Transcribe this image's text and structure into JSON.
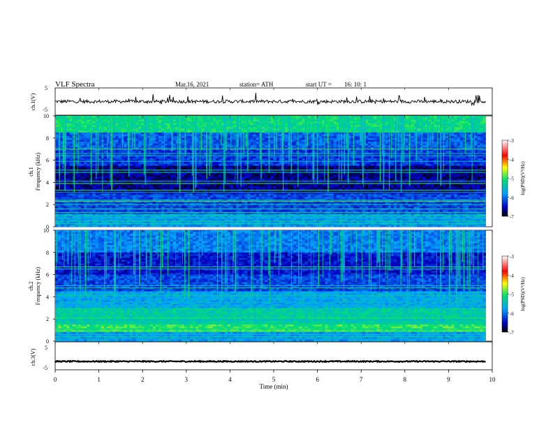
{
  "header": {
    "title": "VLF  Spectra",
    "date": "Mar.16, 2021",
    "station": "station= ATH",
    "start_label": "start  UT  =",
    "start_value": "16: 10: 1"
  },
  "panels": {
    "ch1_label": "ch.1(V)",
    "spec1_label": "ch.1",
    "spec2_label": "ch.2",
    "freq_label": "Frequency (kHz)",
    "ch3_label": "ch.3(V)",
    "x_label": "Time  (min)"
  },
  "colorbar": {
    "label": "log(PSD)(V²/Hz)",
    "ticks": [
      "-3",
      "-4",
      "-5",
      "-6",
      "-7"
    ]
  },
  "colors": {
    "min": "#000000",
    "low": "#0000d0",
    "mid_low": "#00a0ff",
    "mid": "#00e070",
    "mid_high": "#ffff00",
    "high": "#ff0000",
    "max": "#ffffff"
  },
  "chart_data": [
    {
      "type": "line",
      "name": "ch1 waveform",
      "ylabel": "ch.1(V)",
      "ylim": [
        -5,
        5
      ],
      "yticks": [
        5,
        -5
      ],
      "xlim": [
        0,
        10
      ],
      "baseline": 0,
      "x_end": 9.85
    },
    {
      "type": "heatmap",
      "ylabel": "Frequency (kHz)",
      "ylim": [
        0,
        10
      ],
      "yticks": [
        0,
        2,
        4,
        6,
        8,
        10
      ],
      "xlim": [
        0,
        10
      ],
      "x_end": 9.85,
      "color_range": [
        -7,
        -3
      ],
      "lines_khz": [
        0.3,
        0.5,
        0.8,
        1.0,
        1.3,
        1.6,
        2.0,
        2.3,
        2.4,
        3.1,
        3.3,
        3.9,
        4.1,
        4.9,
        5.1,
        5.9,
        6.4,
        6.6,
        7.0
      ]
    },
    {
      "type": "heatmap",
      "ylabel": "Frequency (kHz)",
      "ylim": [
        0,
        10
      ],
      "yticks": [
        0,
        2,
        4,
        6,
        8,
        10
      ],
      "xlim": [
        0,
        10
      ],
      "x_end": 9.85,
      "color_range": [
        -7,
        -3
      ],
      "lines_khz": [
        0.2,
        0.4,
        0.6,
        0.9,
        1.1,
        1.6,
        1.9,
        2.1,
        2.4,
        3.2,
        3.5,
        3.9,
        4.1,
        4.8,
        5.0,
        6.5,
        6.7
      ]
    },
    {
      "type": "line",
      "name": "ch3 waveform",
      "ylabel": "ch.3(V)",
      "ylim": [
        -5,
        5
      ],
      "yticks": [
        5,
        -5
      ],
      "xlim": [
        0,
        10
      ],
      "baseline": -2,
      "x_end": 9.85
    }
  ],
  "time_axis": {
    "ticks": [
      "0",
      "1",
      "2",
      "3",
      "4",
      "5",
      "6",
      "7",
      "8",
      "9",
      "10"
    ]
  }
}
